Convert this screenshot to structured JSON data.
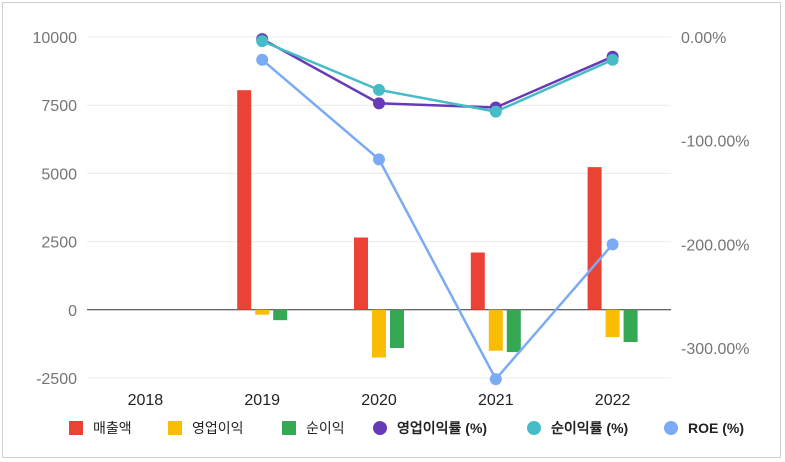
{
  "chart_data": {
    "type": "bar+line",
    "categories": [
      "2018",
      "2019",
      "2020",
      "2021",
      "2022"
    ],
    "y_left": {
      "ticks": [
        10000,
        7500,
        5000,
        2500,
        0,
        -2500
      ],
      "tick_labels": [
        "10000",
        "7500",
        "5000",
        "2500",
        "0",
        "-2500"
      ],
      "ylim": [
        -2500,
        10000
      ]
    },
    "y_right": {
      "ticks": [
        0,
        -100,
        -200,
        -300
      ],
      "tick_labels": [
        "0.00%",
        "-100.00%",
        "-200.00%",
        "-300.00%"
      ],
      "ylim": [
        -330,
        0
      ]
    },
    "bar_series": [
      {
        "name": "매출액",
        "color": "#EA4335",
        "values": [
          null,
          8050,
          2650,
          2100,
          5230
        ]
      },
      {
        "name": "영업이익",
        "color": "#FBBC04",
        "values": [
          null,
          -180,
          -1750,
          -1500,
          -1000
        ]
      },
      {
        "name": "순이익",
        "color": "#34A853",
        "values": [
          null,
          -380,
          -1400,
          -1550,
          -1180
        ]
      }
    ],
    "line_series": [
      {
        "name": "영업이익률 (%)",
        "color": "#673AB7",
        "values": [
          null,
          -2,
          -64,
          -68,
          -19
        ]
      },
      {
        "name": "순이익률 (%)",
        "color": "#46BDC6",
        "values": [
          null,
          -4,
          -51,
          -72,
          -22
        ]
      },
      {
        "name": "ROE (%)",
        "color": "#7BAAF7",
        "values": [
          null,
          -22,
          -118,
          -330,
          -200
        ]
      }
    ],
    "legend_position": "bottom",
    "grid": true
  }
}
